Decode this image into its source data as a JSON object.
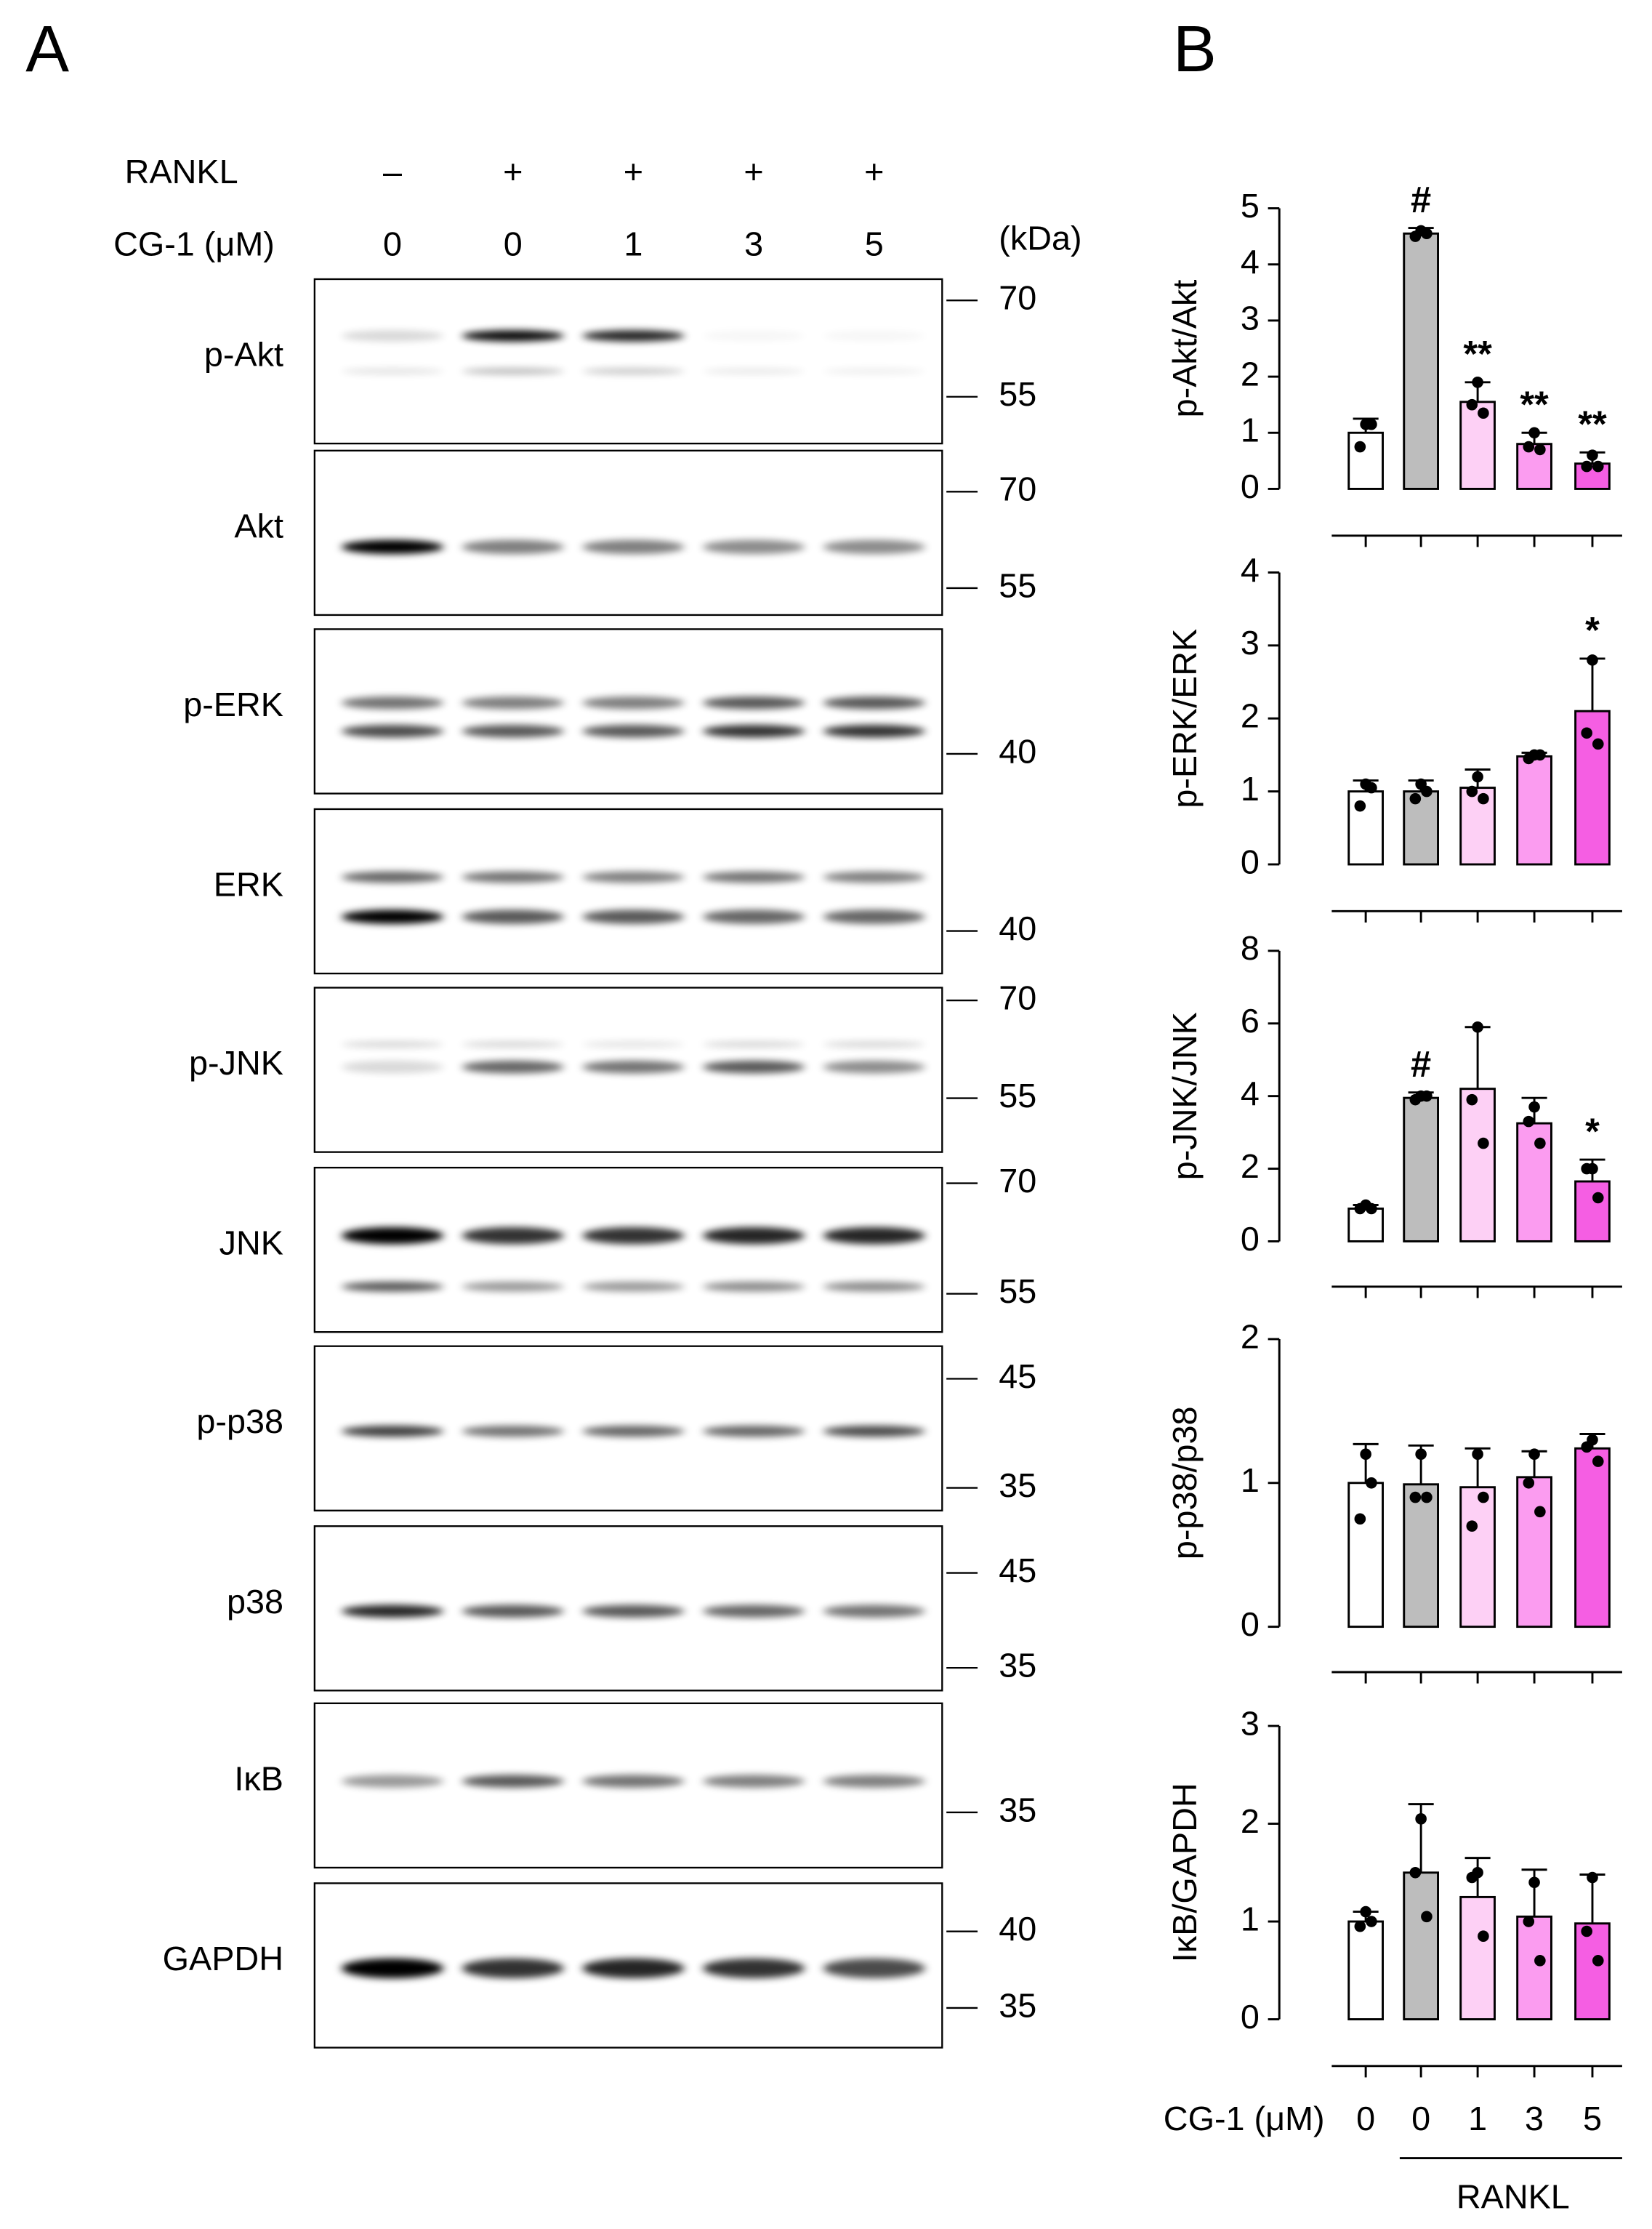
{
  "panels": {
    "a": "A",
    "b": "B"
  },
  "blot_header": {
    "rankl_label": "RANKL",
    "rankl": [
      "–",
      "+",
      "+",
      "+",
      "+"
    ],
    "dose_label": "CG-1 (μM)",
    "doses": [
      "0",
      "0",
      "1",
      "3",
      "5"
    ],
    "unit": "(kDa)"
  },
  "blots": [
    {
      "label": "p-Akt",
      "markers": [
        70,
        55
      ]
    },
    {
      "label": "Akt",
      "markers": [
        70,
        55
      ]
    },
    {
      "label": "p-ERK",
      "markers": [
        40
      ]
    },
    {
      "label": "ERK",
      "markers": [
        40
      ]
    },
    {
      "label": "p-JNK",
      "markers": [
        70,
        55
      ]
    },
    {
      "label": "JNK",
      "markers": [
        70,
        55
      ]
    },
    {
      "label": "p-p38",
      "markers": [
        45,
        35
      ]
    },
    {
      "label": "p38",
      "markers": [
        45,
        35
      ]
    },
    {
      "label": "IκB",
      "markers": [
        35
      ]
    },
    {
      "label": "GAPDH",
      "markers": [
        40,
        35
      ]
    }
  ],
  "chart_data": [
    {
      "type": "bar",
      "ylabel": "p-Akt/Akt",
      "ylim": [
        0,
        5
      ],
      "yticks": [
        0,
        1,
        2,
        3,
        4,
        5
      ],
      "colors": [
        "#ffffff",
        "#bdbdbd",
        "#fdd0f5",
        "#fb9cf0",
        "#f55ee3"
      ],
      "values": [
        1.0,
        4.55,
        1.55,
        0.8,
        0.45
      ],
      "errors": [
        0.25,
        0.1,
        0.35,
        0.2,
        0.2
      ],
      "points": [
        [
          1.15,
          0.75,
          1.15
        ],
        [
          4.6,
          4.5,
          4.55
        ],
        [
          1.9,
          1.5,
          1.35
        ],
        [
          1.0,
          0.75,
          0.7
        ],
        [
          0.6,
          0.4,
          0.4
        ]
      ],
      "annotations": [
        null,
        "#",
        "**",
        "**",
        "**"
      ]
    },
    {
      "type": "bar",
      "ylabel": "p-ERK/ERK",
      "ylim": [
        0,
        4
      ],
      "yticks": [
        0,
        1,
        2,
        3,
        4
      ],
      "colors": [
        "#ffffff",
        "#bdbdbd",
        "#fdd0f5",
        "#fb9cf0",
        "#f55ee3"
      ],
      "values": [
        1.0,
        1.0,
        1.05,
        1.48,
        2.1
      ],
      "errors": [
        0.15,
        0.15,
        0.25,
        0.05,
        0.72
      ],
      "points": [
        [
          1.1,
          0.8,
          1.05
        ],
        [
          1.1,
          0.9,
          1.0
        ],
        [
          1.2,
          1.0,
          0.9
        ],
        [
          1.5,
          1.45,
          1.5
        ],
        [
          2.8,
          1.8,
          1.65
        ]
      ],
      "annotations": [
        null,
        null,
        null,
        null,
        "*"
      ]
    },
    {
      "type": "bar",
      "ylabel": "p-JNK/JNK",
      "ylim": [
        0,
        8
      ],
      "yticks": [
        0,
        2,
        4,
        6,
        8
      ],
      "colors": [
        "#ffffff",
        "#bdbdbd",
        "#fdd0f5",
        "#fb9cf0",
        "#f55ee3"
      ],
      "values": [
        0.9,
        3.95,
        4.2,
        3.25,
        1.65
      ],
      "errors": [
        0.1,
        0.15,
        1.7,
        0.7,
        0.6
      ],
      "points": [
        [
          1.0,
          0.9,
          0.9
        ],
        [
          4.0,
          3.9,
          4.0
        ],
        [
          5.9,
          3.9,
          2.7
        ],
        [
          3.7,
          3.3,
          2.7
        ],
        [
          2.0,
          2.0,
          1.2
        ]
      ],
      "annotations": [
        null,
        "#",
        null,
        null,
        "*"
      ]
    },
    {
      "type": "bar",
      "ylabel": "p-p38/p38",
      "ylim": [
        0,
        2
      ],
      "yticks": [
        0,
        1,
        2
      ],
      "colors": [
        "#ffffff",
        "#bdbdbd",
        "#fdd0f5",
        "#fb9cf0",
        "#f55ee3"
      ],
      "values": [
        1.0,
        0.99,
        0.97,
        1.04,
        1.24
      ],
      "errors": [
        0.27,
        0.27,
        0.27,
        0.18,
        0.1
      ],
      "points": [
        [
          1.2,
          0.75,
          1.0
        ],
        [
          1.2,
          0.9,
          0.9
        ],
        [
          1.2,
          0.7,
          0.9
        ],
        [
          1.2,
          1.0,
          0.8
        ],
        [
          1.3,
          1.25,
          1.15
        ]
      ]
    },
    {
      "type": "bar",
      "ylabel": "IκB/GAPDH",
      "ylim": [
        0,
        3
      ],
      "yticks": [
        0,
        1,
        2,
        3
      ],
      "colors": [
        "#ffffff",
        "#bdbdbd",
        "#fdd0f5",
        "#fb9cf0",
        "#f55ee3"
      ],
      "values": [
        1.0,
        1.5,
        1.25,
        1.05,
        0.98
      ],
      "errors": [
        0.1,
        0.7,
        0.4,
        0.48,
        0.5
      ],
      "points": [
        [
          1.1,
          0.95,
          1.0
        ],
        [
          2.05,
          1.5,
          1.05
        ],
        [
          1.5,
          1.45,
          0.85
        ],
        [
          1.4,
          1.0,
          0.6
        ],
        [
          1.45,
          0.9,
          0.6
        ]
      ],
      "xlabel": "CG-1 (μM)",
      "categories": [
        "0",
        "0",
        "1",
        "3",
        "5"
      ],
      "group_label": "RANKL"
    }
  ]
}
